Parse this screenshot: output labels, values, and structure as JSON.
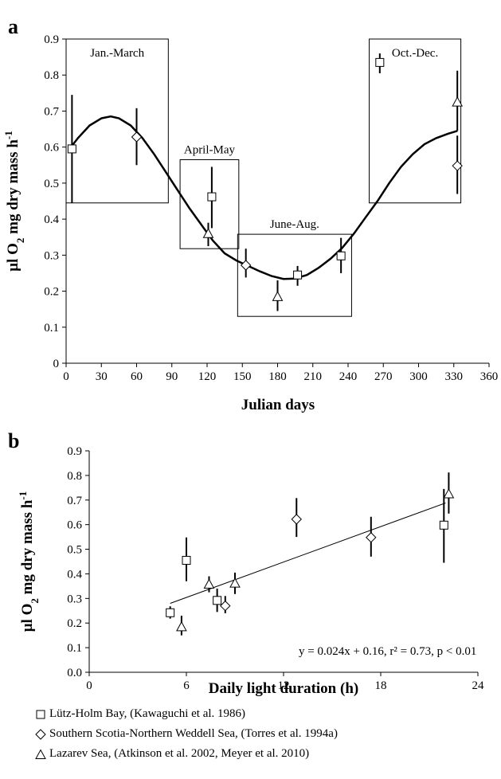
{
  "chart_data": [
    {
      "panel": "a",
      "type": "scatter",
      "xlabel": "Julian days",
      "ylabel": "μl O2 mg dry mass h-1",
      "xlim": [
        0,
        360
      ],
      "ylim": [
        0,
        0.9
      ],
      "xticks": [
        0,
        30,
        60,
        90,
        120,
        150,
        180,
        210,
        240,
        270,
        300,
        330,
        360
      ],
      "yticks": [
        0,
        0.1,
        0.2,
        0.3,
        0.4,
        0.5,
        0.6,
        0.7,
        0.8,
        0.9
      ],
      "grid": false,
      "series": [
        {
          "marker": "square",
          "points": [
            {
              "x": 5,
              "y": 0.595,
              "lo": 0.445,
              "hi": 0.745
            },
            {
              "x": 124,
              "y": 0.462,
              "lo": 0.375,
              "hi": 0.545
            },
            {
              "x": 197,
              "y": 0.245,
              "lo": 0.215,
              "hi": 0.27
            },
            {
              "x": 234,
              "y": 0.298,
              "lo": 0.25,
              "hi": 0.348
            },
            {
              "x": 267,
              "y": 0.835,
              "lo": 0.805,
              "hi": 0.86
            }
          ]
        },
        {
          "marker": "diamond",
          "points": [
            {
              "x": 60,
              "y": 0.628,
              "lo": 0.55,
              "hi": 0.708
            },
            {
              "x": 153,
              "y": 0.272,
              "lo": 0.238,
              "hi": 0.318
            },
            {
              "x": 333,
              "y": 0.548,
              "lo": 0.47,
              "hi": 0.632
            }
          ]
        },
        {
          "marker": "triangle",
          "points": [
            {
              "x": 121,
              "y": 0.36,
              "lo": 0.325,
              "hi": 0.39
            },
            {
              "x": 180,
              "y": 0.185,
              "lo": 0.145,
              "hi": 0.23
            },
            {
              "x": 333,
              "y": 0.725,
              "lo": 0.645,
              "hi": 0.812
            }
          ]
        }
      ],
      "fit_curve": [
        [
          3,
          0.595
        ],
        [
          10,
          0.625
        ],
        [
          20,
          0.66
        ],
        [
          30,
          0.68
        ],
        [
          38,
          0.685
        ],
        [
          45,
          0.68
        ],
        [
          55,
          0.66
        ],
        [
          65,
          0.625
        ],
        [
          75,
          0.58
        ],
        [
          85,
          0.53
        ],
        [
          95,
          0.48
        ],
        [
          105,
          0.43
        ],
        [
          115,
          0.385
        ],
        [
          125,
          0.34
        ],
        [
          135,
          0.305
        ],
        [
          145,
          0.285
        ],
        [
          155,
          0.27
        ],
        [
          165,
          0.255
        ],
        [
          175,
          0.242
        ],
        [
          185,
          0.234
        ],
        [
          195,
          0.235
        ],
        [
          205,
          0.245
        ],
        [
          215,
          0.265
        ],
        [
          225,
          0.29
        ],
        [
          235,
          0.32
        ],
        [
          245,
          0.36
        ],
        [
          255,
          0.405
        ],
        [
          265,
          0.45
        ],
        [
          275,
          0.5
        ],
        [
          285,
          0.545
        ],
        [
          295,
          0.58
        ],
        [
          305,
          0.608
        ],
        [
          315,
          0.625
        ],
        [
          325,
          0.637
        ],
        [
          333,
          0.645
        ]
      ],
      "boxes": [
        {
          "label": "Jan.-March",
          "x0": 0,
          "x1": 87,
          "y0": 0.445,
          "y1": 0.9
        },
        {
          "label": "April-May",
          "x0": 97,
          "x1": 147,
          "y0": 0.318,
          "y1": 0.565
        },
        {
          "label": "June-Aug.",
          "x0": 146,
          "x1": 243,
          "y0": 0.13,
          "y1": 0.358
        },
        {
          "label": "Oct.-Dec.",
          "x0": 258,
          "x1": 336,
          "y0": 0.445,
          "y1": 0.9
        }
      ]
    },
    {
      "panel": "b",
      "type": "scatter",
      "xlabel": "Daily light duration (h)",
      "ylabel": "μl O2 mg dry mass h-1",
      "xlim": [
        0,
        24
      ],
      "ylim": [
        0,
        0.9
      ],
      "xticks": [
        0,
        6,
        12,
        18,
        24
      ],
      "yticks": [
        "0.0",
        "0.1",
        "0.2",
        "0.3",
        "0.4",
        "0.5",
        "0.6",
        "0.7",
        "0.8",
        "0.9"
      ],
      "grid": false,
      "series": [
        {
          "name": "Lütz-Holm Bay, (Kawaguchi et al. 1986)",
          "marker": "square",
          "points": [
            {
              "x": 5.0,
              "y": 0.242,
              "lo": 0.218,
              "hi": 0.268
            },
            {
              "x": 6.0,
              "y": 0.455,
              "lo": 0.37,
              "hi": 0.548
            },
            {
              "x": 7.9,
              "y": 0.292,
              "lo": 0.245,
              "hi": 0.34
            },
            {
              "x": 21.9,
              "y": 0.598,
              "lo": 0.445,
              "hi": 0.745
            }
          ]
        },
        {
          "name": "Southern Scotia-Northern Weddell Sea, (Torres et al. 1994a)",
          "marker": "diamond",
          "points": [
            {
              "x": 8.4,
              "y": 0.27,
              "lo": 0.24,
              "hi": 0.31
            },
            {
              "x": 12.8,
              "y": 0.622,
              "lo": 0.55,
              "hi": 0.708
            },
            {
              "x": 17.4,
              "y": 0.548,
              "lo": 0.47,
              "hi": 0.632
            }
          ]
        },
        {
          "name": "Lazarev Sea, (Atkinson et al. 2002, Meyer et al. 2010)",
          "marker": "triangle",
          "points": [
            {
              "x": 5.7,
              "y": 0.185,
              "lo": 0.15,
              "hi": 0.23
            },
            {
              "x": 7.4,
              "y": 0.358,
              "lo": 0.325,
              "hi": 0.39
            },
            {
              "x": 9.0,
              "y": 0.362,
              "lo": 0.318,
              "hi": 0.405
            },
            {
              "x": 22.2,
              "y": 0.725,
              "lo": 0.645,
              "hi": 0.812
            }
          ]
        }
      ],
      "regression": {
        "x0": 5,
        "x1": 22,
        "slope": 0.024,
        "intercept": 0.16
      },
      "annotation": "y = 0.024x + 0.16, r² = 0.73, p < 0.01"
    }
  ]
}
